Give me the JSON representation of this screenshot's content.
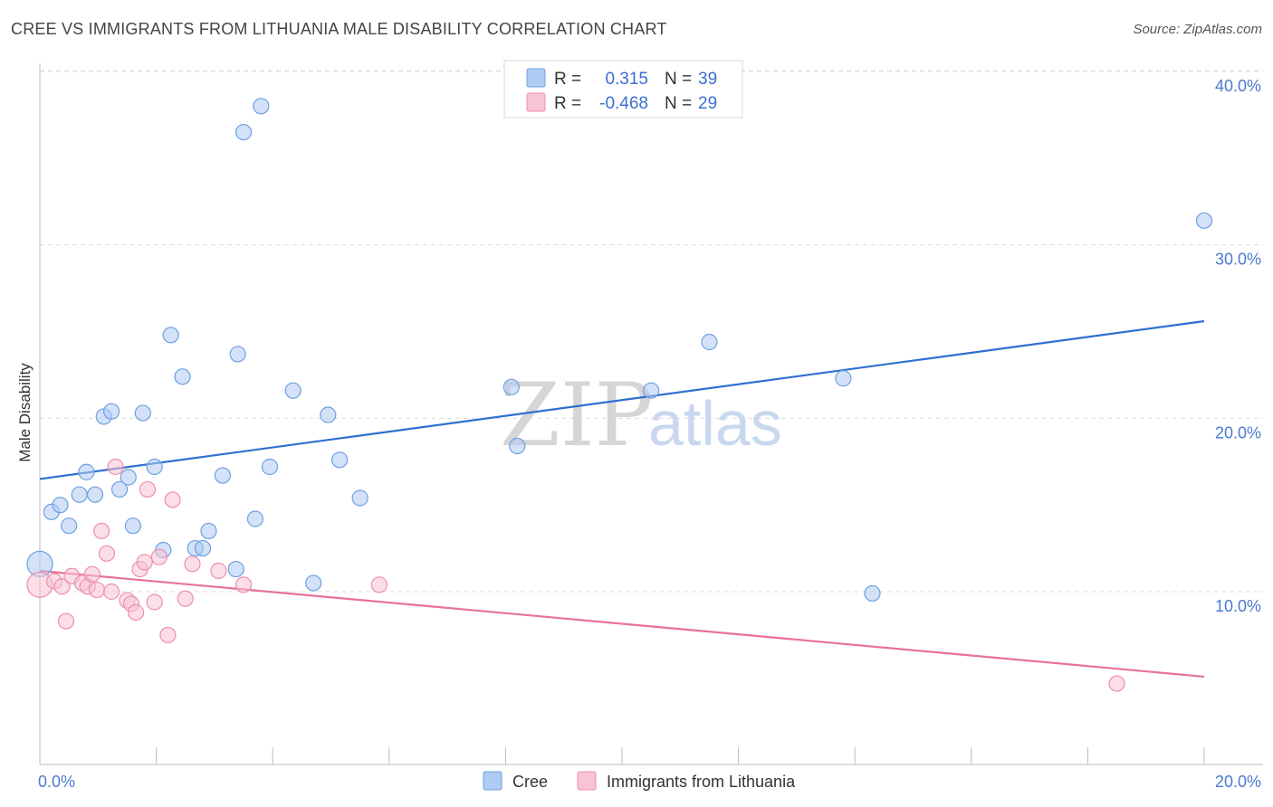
{
  "title": "CREE VS IMMIGRANTS FROM LITHUANIA MALE DISABILITY CORRELATION CHART",
  "source": "Source: ZipAtlas.com",
  "watermark": {
    "part1": "ZIP",
    "part2": "atlas"
  },
  "legend": {
    "rows": [
      {
        "r_label": "R =",
        "r_value": "0.315",
        "n_label": "N =",
        "n_value": "39",
        "color": "#aecbf4",
        "stroke": "#6f9fe0"
      },
      {
        "r_label": "R =",
        "r_value": "-0.468",
        "n_label": "N =",
        "n_value": "29",
        "color": "#f8c3d3",
        "stroke": "#ec8fac"
      }
    ]
  },
  "bottom_legend": [
    "Cree",
    "Immigrants from Lithuania"
  ],
  "chart_data": {
    "type": "scatter",
    "title": "CREE VS IMMIGRANTS FROM LITHUANIA MALE DISABILITY CORRELATION CHART",
    "xlabel": "",
    "ylabel": "Male Disability",
    "xlim": [
      0,
      20
    ],
    "ylim": [
      0,
      42
    ],
    "x_tick_labels": [
      "0.0%",
      "20.0%"
    ],
    "y_ticks": [
      10,
      20,
      30,
      40
    ],
    "y_tick_labels": [
      "10.0%",
      "20.0%",
      "30.0%",
      "40.0%"
    ],
    "grid": "horizontal dashed",
    "legend_position": "top-center",
    "series": [
      {
        "name": "Cree",
        "color": "#aecbf4",
        "stroke": "#6f9fe0",
        "trend_color": "#2f6fd0",
        "trend": [
          [
            0,
            16.5
          ],
          [
            20,
            25.6
          ]
        ],
        "points": [
          [
            0.0,
            11.6,
            "large"
          ],
          [
            0.2,
            14.6
          ],
          [
            0.35,
            15.0
          ],
          [
            0.5,
            13.8
          ],
          [
            0.68,
            15.6
          ],
          [
            0.8,
            16.9
          ],
          [
            0.95,
            15.6
          ],
          [
            1.1,
            20.1
          ],
          [
            1.23,
            20.4
          ],
          [
            1.37,
            15.9
          ],
          [
            1.52,
            16.6
          ],
          [
            1.6,
            13.8
          ],
          [
            1.77,
            20.3
          ],
          [
            1.97,
            17.2
          ],
          [
            2.12,
            12.4
          ],
          [
            2.25,
            24.8
          ],
          [
            2.45,
            22.4
          ],
          [
            2.67,
            12.5
          ],
          [
            2.8,
            12.5
          ],
          [
            2.9,
            13.5
          ],
          [
            3.14,
            16.7
          ],
          [
            3.37,
            11.3
          ],
          [
            3.4,
            23.7
          ],
          [
            3.5,
            36.5
          ],
          [
            3.7,
            14.2
          ],
          [
            3.8,
            38.0
          ],
          [
            3.95,
            17.2
          ],
          [
            4.35,
            21.6
          ],
          [
            4.7,
            10.5
          ],
          [
            4.95,
            20.2
          ],
          [
            5.15,
            17.6
          ],
          [
            5.5,
            15.4
          ],
          [
            8.1,
            21.8
          ],
          [
            8.2,
            18.4
          ],
          [
            10.5,
            21.6
          ],
          [
            11.5,
            24.4
          ],
          [
            13.8,
            22.3
          ],
          [
            14.3,
            9.9
          ],
          [
            20.0,
            31.4
          ]
        ]
      },
      {
        "name": "Immigrants from Lithuania",
        "color": "#f8c3d3",
        "stroke": "#ec8fac",
        "trend_color": "#e8719a",
        "trend": [
          [
            0,
            11.2
          ],
          [
            20,
            5.1
          ]
        ],
        "points": [
          [
            0.0,
            10.4,
            "large"
          ],
          [
            0.25,
            10.6
          ],
          [
            0.38,
            10.3
          ],
          [
            0.45,
            8.3
          ],
          [
            0.55,
            10.9
          ],
          [
            0.73,
            10.5
          ],
          [
            0.82,
            10.3
          ],
          [
            0.9,
            11.0
          ],
          [
            0.98,
            10.1
          ],
          [
            1.06,
            13.5
          ],
          [
            1.15,
            12.2
          ],
          [
            1.23,
            10.0
          ],
          [
            1.3,
            17.2
          ],
          [
            1.5,
            9.5
          ],
          [
            1.57,
            9.3
          ],
          [
            1.65,
            8.8
          ],
          [
            1.72,
            11.3
          ],
          [
            1.8,
            11.7
          ],
          [
            1.85,
            15.9
          ],
          [
            1.97,
            9.4
          ],
          [
            2.05,
            12.0
          ],
          [
            2.2,
            7.5
          ],
          [
            2.28,
            15.3
          ],
          [
            2.5,
            9.6
          ],
          [
            2.62,
            11.6
          ],
          [
            3.07,
            11.2
          ],
          [
            3.5,
            10.4
          ],
          [
            5.83,
            10.4
          ],
          [
            18.5,
            4.7
          ]
        ]
      }
    ]
  }
}
